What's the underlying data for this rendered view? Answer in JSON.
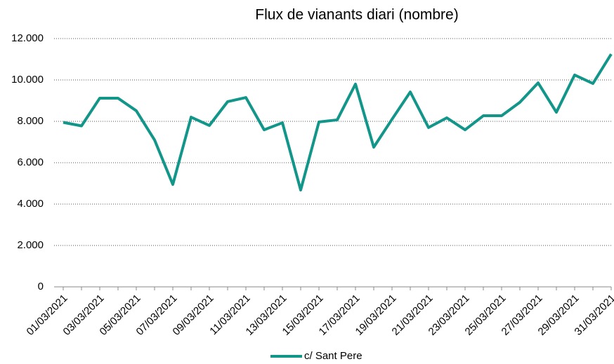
{
  "chart_data": {
    "type": "line",
    "title": "Flux de vianants diari (nombre)",
    "categories": [
      "01/03/2021",
      null,
      "03/03/2021",
      null,
      "05/03/2021",
      null,
      "07/03/2021",
      null,
      "09/03/2021",
      null,
      "11/03/2021",
      null,
      "13/03/2021",
      null,
      "15/03/2021",
      null,
      "17/03/2021",
      null,
      "19/03/2021",
      null,
      "21/03/2021",
      null,
      "23/03/2021",
      null,
      "25/03/2021",
      null,
      "27/03/2021",
      null,
      "29/03/2021",
      null,
      "31/03/2021"
    ],
    "series": [
      {
        "name": "c/ Sant Pere",
        "color": "#12968a",
        "values": [
          7950,
          7780,
          9120,
          9120,
          8510,
          7100,
          4950,
          8200,
          7800,
          8950,
          9150,
          7590,
          7930,
          4680,
          7970,
          8070,
          9800,
          6750,
          8100,
          9420,
          7700,
          8170,
          7590,
          8270,
          8270,
          8920,
          9860,
          8440,
          10240,
          9830,
          11250
        ]
      }
    ],
    "ylim": [
      0,
      12000
    ],
    "yticks": [
      0,
      {
        "value": 2000,
        "label": "2.000"
      },
      {
        "value": 4000,
        "label": "4.000"
      },
      {
        "value": 6000,
        "label": "6.000"
      },
      {
        "value": 8000,
        "label": "8.000"
      },
      {
        "value": 10000,
        "label": "10.000"
      },
      {
        "value": 12000,
        "label": "12.000"
      }
    ],
    "grid": true,
    "legend": "bottom"
  }
}
